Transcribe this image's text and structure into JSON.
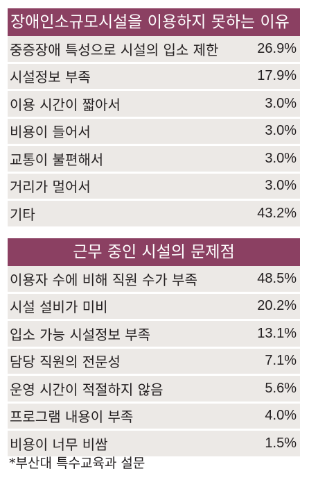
{
  "table1": {
    "title": "장애인소규모시설을 이용하지 못하는 이유",
    "rows": [
      {
        "label": "중증장애 특성으로 시설의 입소 제한",
        "value": "26.9%"
      },
      {
        "label": "시설정보 부족",
        "value": "17.9%"
      },
      {
        "label": "이용 시간이 짧아서",
        "value": "3.0%"
      },
      {
        "label": "비용이 들어서",
        "value": "3.0%"
      },
      {
        "label": "교통이 불편해서",
        "value": "3.0%"
      },
      {
        "label": "거리가 멀어서",
        "value": "3.0%"
      },
      {
        "label": "기타",
        "value": "43.2%"
      }
    ]
  },
  "table2": {
    "title": "근무 중인 시설의 문제점",
    "rows": [
      {
        "label": "이용자 수에 비해 직원 수가 부족",
        "value": "48.5%"
      },
      {
        "label": "시설 설비가 미비",
        "value": "20.2%"
      },
      {
        "label": "입소 가능 시설정보 부족",
        "value": "13.1%"
      },
      {
        "label": "담당 직원의 전문성",
        "value": "7.1%"
      },
      {
        "label": "운영 시간이 적절하지 않음",
        "value": "5.6%"
      },
      {
        "label": "프로그램 내용이 부족",
        "value": "4.0%"
      },
      {
        "label": "비용이 너무 비쌈",
        "value": "1.5%"
      }
    ]
  },
  "footnote": "*부산대 특수교육과 설문",
  "colors": {
    "header_bg": "#8b4062",
    "row_bg": "#ece9e6",
    "header_text": "#ffffff",
    "body_text": "#231f20"
  }
}
